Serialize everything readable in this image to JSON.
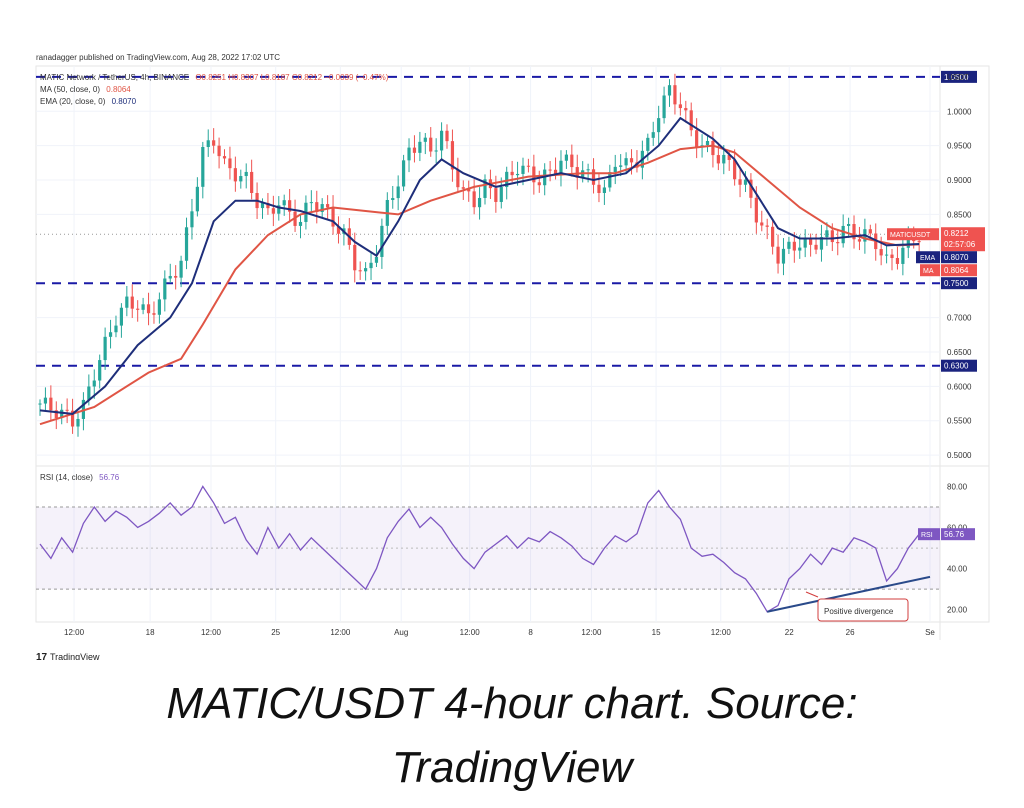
{
  "header": {
    "published": "ranadagger published on TradingView.com, Aug 28, 2022 17:02 UTC",
    "symbol": "MATIC Network / TetherUS, 4h, BINANCE",
    "ohlc": "O0.8251 H0.8307 L0.8187 C0.8212 −0.0039 (−0.47%)",
    "ma_label": "MA (50, close, 0)",
    "ma_value": "0.8064",
    "ema_label": "EMA (20, close, 0)",
    "ema_value": "0.8070",
    "rsi_label": "RSI (14, close)",
    "rsi_value": "56.76",
    "currency": "USDT"
  },
  "caption": {
    "line1": "MATIC/USDT 4-hour chart. Source:",
    "line2": "TradingView"
  },
  "logo": "TradingView",
  "annotation": "Positive divergence",
  "colors": {
    "up": "#26a69a",
    "down": "#ef5350",
    "ema": "#1e2e7a",
    "ma": "#e05545",
    "rsi": "#7e57c2",
    "level": "#1a1aa6",
    "divergence": "#2a4a8a"
  },
  "chart_data": [
    {
      "type": "candlestick",
      "y_ticks": [
        "1.0000",
        "0.9500",
        "0.9000",
        "0.8500",
        "0.7000",
        "0.6500",
        "0.6000",
        "0.5500",
        "0.5000"
      ],
      "y_range": [
        0.49,
        1.06
      ],
      "x_ticks": [
        "12:00",
        "18",
        "12:00",
        "25",
        "12:00",
        "Aug",
        "12:00",
        "8",
        "12:00",
        "15",
        "12:00",
        "22",
        "26",
        "Se"
      ],
      "levels": [
        "1.0500",
        "0.7500",
        "0.6300"
      ],
      "last_price": "0.8212",
      "countdown": "02:57:06",
      "tag_ema": "EMA",
      "tag_ema_value": "0.8070",
      "tag_ma": "MA",
      "tag_ma_value": "0.8064",
      "tag_symbol": "MATICUSDT",
      "closes": [
        [
          0,
          0.575
        ],
        [
          3,
          0.565
        ],
        [
          6,
          0.55
        ],
        [
          8,
          0.57
        ],
        [
          10,
          0.62
        ],
        [
          12,
          0.66
        ],
        [
          14,
          0.7
        ],
        [
          16,
          0.72
        ],
        [
          18,
          0.72
        ],
        [
          20,
          0.7
        ],
        [
          22,
          0.73
        ],
        [
          24,
          0.76
        ],
        [
          26,
          0.78
        ],
        [
          28,
          0.86
        ],
        [
          30,
          0.94
        ],
        [
          32,
          0.96
        ],
        [
          34,
          0.92
        ],
        [
          36,
          0.91
        ],
        [
          38,
          0.9
        ],
        [
          40,
          0.87
        ],
        [
          42,
          0.85
        ],
        [
          44,
          0.87
        ],
        [
          46,
          0.85
        ],
        [
          48,
          0.84
        ],
        [
          50,
          0.87
        ],
        [
          52,
          0.86
        ],
        [
          54,
          0.84
        ],
        [
          56,
          0.82
        ],
        [
          58,
          0.78
        ],
        [
          60,
          0.76
        ],
        [
          62,
          0.8
        ],
        [
          64,
          0.86
        ],
        [
          66,
          0.9
        ],
        [
          68,
          0.94
        ],
        [
          70,
          0.96
        ],
        [
          72,
          0.94
        ],
        [
          74,
          0.97
        ],
        [
          76,
          0.92
        ],
        [
          78,
          0.88
        ],
        [
          80,
          0.87
        ],
        [
          82,
          0.89
        ],
        [
          84,
          0.88
        ],
        [
          86,
          0.9
        ],
        [
          88,
          0.92
        ],
        [
          90,
          0.91
        ],
        [
          92,
          0.9
        ],
        [
          94,
          0.91
        ],
        [
          96,
          0.93
        ],
        [
          98,
          0.92
        ],
        [
          100,
          0.91
        ],
        [
          102,
          0.9
        ],
        [
          104,
          0.88
        ],
        [
          106,
          0.93
        ],
        [
          108,
          0.92
        ],
        [
          110,
          0.93
        ],
        [
          112,
          0.95
        ],
        [
          114,
          1.0
        ],
        [
          116,
          1.03
        ],
        [
          118,
          1.01
        ],
        [
          120,
          0.97
        ],
        [
          122,
          0.95
        ],
        [
          124,
          0.94
        ],
        [
          126,
          0.93
        ],
        [
          128,
          0.91
        ],
        [
          130,
          0.89
        ],
        [
          132,
          0.85
        ],
        [
          134,
          0.82
        ],
        [
          136,
          0.79
        ],
        [
          138,
          0.8
        ],
        [
          140,
          0.81
        ],
        [
          142,
          0.8
        ],
        [
          144,
          0.82
        ],
        [
          146,
          0.81
        ],
        [
          148,
          0.83
        ],
        [
          150,
          0.82
        ],
        [
          152,
          0.82
        ],
        [
          154,
          0.81
        ],
        [
          156,
          0.78
        ],
        [
          158,
          0.79
        ],
        [
          160,
          0.81
        ],
        [
          162,
          0.8212
        ]
      ],
      "ema20": [
        [
          0,
          0.565
        ],
        [
          6,
          0.56
        ],
        [
          12,
          0.6
        ],
        [
          18,
          0.66
        ],
        [
          24,
          0.7
        ],
        [
          28,
          0.75
        ],
        [
          32,
          0.84
        ],
        [
          36,
          0.87
        ],
        [
          40,
          0.87
        ],
        [
          44,
          0.86
        ],
        [
          48,
          0.855
        ],
        [
          54,
          0.84
        ],
        [
          58,
          0.81
        ],
        [
          62,
          0.79
        ],
        [
          66,
          0.84
        ],
        [
          70,
          0.9
        ],
        [
          74,
          0.93
        ],
        [
          78,
          0.91
        ],
        [
          84,
          0.89
        ],
        [
          90,
          0.9
        ],
        [
          96,
          0.91
        ],
        [
          102,
          0.9
        ],
        [
          108,
          0.91
        ],
        [
          114,
          0.95
        ],
        [
          118,
          0.99
        ],
        [
          124,
          0.96
        ],
        [
          128,
          0.93
        ],
        [
          132,
          0.88
        ],
        [
          136,
          0.83
        ],
        [
          140,
          0.815
        ],
        [
          146,
          0.815
        ],
        [
          152,
          0.82
        ],
        [
          156,
          0.805
        ],
        [
          162,
          0.807
        ]
      ],
      "ma50": [
        [
          0,
          0.545
        ],
        [
          10,
          0.57
        ],
        [
          20,
          0.62
        ],
        [
          26,
          0.64
        ],
        [
          30,
          0.69
        ],
        [
          36,
          0.77
        ],
        [
          42,
          0.82
        ],
        [
          48,
          0.85
        ],
        [
          54,
          0.86
        ],
        [
          60,
          0.855
        ],
        [
          66,
          0.85
        ],
        [
          72,
          0.87
        ],
        [
          80,
          0.89
        ],
        [
          90,
          0.905
        ],
        [
          100,
          0.91
        ],
        [
          106,
          0.91
        ],
        [
          112,
          0.925
        ],
        [
          118,
          0.945
        ],
        [
          124,
          0.95
        ],
        [
          128,
          0.94
        ],
        [
          134,
          0.9
        ],
        [
          140,
          0.86
        ],
        [
          146,
          0.83
        ],
        [
          152,
          0.815
        ],
        [
          158,
          0.805
        ],
        [
          162,
          0.8064
        ]
      ]
    },
    {
      "type": "line",
      "series_name": "RSI (14, close)",
      "y_ticks": [
        "80.00",
        "60.00",
        "40.00",
        "20.00"
      ],
      "y_range": [
        15,
        88
      ],
      "band": [
        30,
        70
      ],
      "tag": "RSI",
      "tag_value": "56.76",
      "values": [
        [
          0,
          52
        ],
        [
          2,
          45
        ],
        [
          4,
          55
        ],
        [
          6,
          48
        ],
        [
          8,
          62
        ],
        [
          10,
          70
        ],
        [
          12,
          63
        ],
        [
          14,
          68
        ],
        [
          16,
          65
        ],
        [
          18,
          60
        ],
        [
          20,
          63
        ],
        [
          22,
          67
        ],
        [
          24,
          72
        ],
        [
          26,
          66
        ],
        [
          28,
          70
        ],
        [
          30,
          80
        ],
        [
          32,
          72
        ],
        [
          34,
          62
        ],
        [
          36,
          65
        ],
        [
          38,
          54
        ],
        [
          40,
          47
        ],
        [
          42,
          60
        ],
        [
          44,
          50
        ],
        [
          46,
          57
        ],
        [
          48,
          49
        ],
        [
          50,
          55
        ],
        [
          52,
          50
        ],
        [
          54,
          45
        ],
        [
          56,
          40
        ],
        [
          58,
          35
        ],
        [
          60,
          30
        ],
        [
          62,
          40
        ],
        [
          64,
          55
        ],
        [
          66,
          63
        ],
        [
          68,
          69
        ],
        [
          70,
          60
        ],
        [
          72,
          65
        ],
        [
          74,
          60
        ],
        [
          76,
          52
        ],
        [
          78,
          45
        ],
        [
          80,
          40
        ],
        [
          82,
          48
        ],
        [
          84,
          52
        ],
        [
          86,
          56
        ],
        [
          88,
          50
        ],
        [
          90,
          55
        ],
        [
          92,
          53
        ],
        [
          94,
          58
        ],
        [
          96,
          55
        ],
        [
          98,
          51
        ],
        [
          100,
          45
        ],
        [
          102,
          42
        ],
        [
          104,
          50
        ],
        [
          106,
          56
        ],
        [
          108,
          53
        ],
        [
          110,
          57
        ],
        [
          112,
          72
        ],
        [
          114,
          78
        ],
        [
          116,
          70
        ],
        [
          118,
          64
        ],
        [
          120,
          50
        ],
        [
          122,
          46
        ],
        [
          124,
          47
        ],
        [
          126,
          43
        ],
        [
          128,
          38
        ],
        [
          130,
          35
        ],
        [
          132,
          28
        ],
        [
          134,
          19
        ],
        [
          136,
          22
        ],
        [
          138,
          35
        ],
        [
          140,
          40
        ],
        [
          142,
          47
        ],
        [
          144,
          42
        ],
        [
          146,
          50
        ],
        [
          148,
          48
        ],
        [
          150,
          55
        ],
        [
          152,
          53
        ],
        [
          154,
          50
        ],
        [
          156,
          34
        ],
        [
          158,
          40
        ],
        [
          160,
          50
        ],
        [
          162,
          56.76
        ]
      ],
      "divergence_line": [
        [
          134,
          19
        ],
        [
          164,
          36
        ]
      ]
    }
  ]
}
